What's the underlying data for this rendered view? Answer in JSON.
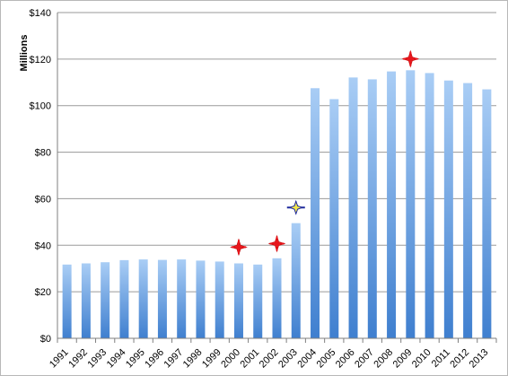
{
  "chart_data": {
    "type": "bar",
    "title": "",
    "xlabel": "",
    "ylabel": "Millions",
    "ylim": [
      0,
      140
    ],
    "y_ticks": [
      "$0",
      "$20",
      "$40",
      "$60",
      "$80",
      "$100",
      "$120",
      "$140"
    ],
    "y_tick_values": [
      0,
      20,
      40,
      60,
      80,
      100,
      120,
      140
    ],
    "grid": true,
    "categories": [
      "1991",
      "1992",
      "1993",
      "1994",
      "1995",
      "1996",
      "1997",
      "1998",
      "1999",
      "2000",
      "2001",
      "2002",
      "2003",
      "2004",
      "2005",
      "2006",
      "2007",
      "2008",
      "2009",
      "2010",
      "2011",
      "2012",
      "2013"
    ],
    "values": [
      31.7,
      32.2,
      32.7,
      33.6,
      33.9,
      33.7,
      33.9,
      33.4,
      33.0,
      32.2,
      31.7,
      34.4,
      49.5,
      107.5,
      102.8,
      112.1,
      111.3,
      114.7,
      115.2,
      114.0,
      110.8,
      109.7,
      107.0
    ],
    "bar_color": "#5b9bd5",
    "markers": [
      {
        "category": "2000",
        "value": 39.2,
        "style": "red-star",
        "color": "#e8161c"
      },
      {
        "category": "2002",
        "value": 40.7,
        "style": "red-star",
        "color": "#e8161c"
      },
      {
        "category": "2003",
        "value": 56.2,
        "style": "yellow-star",
        "color": "#f2e64a"
      },
      {
        "category": "2009",
        "value": 120.1,
        "style": "red-star",
        "color": "#e8161c"
      }
    ]
  }
}
